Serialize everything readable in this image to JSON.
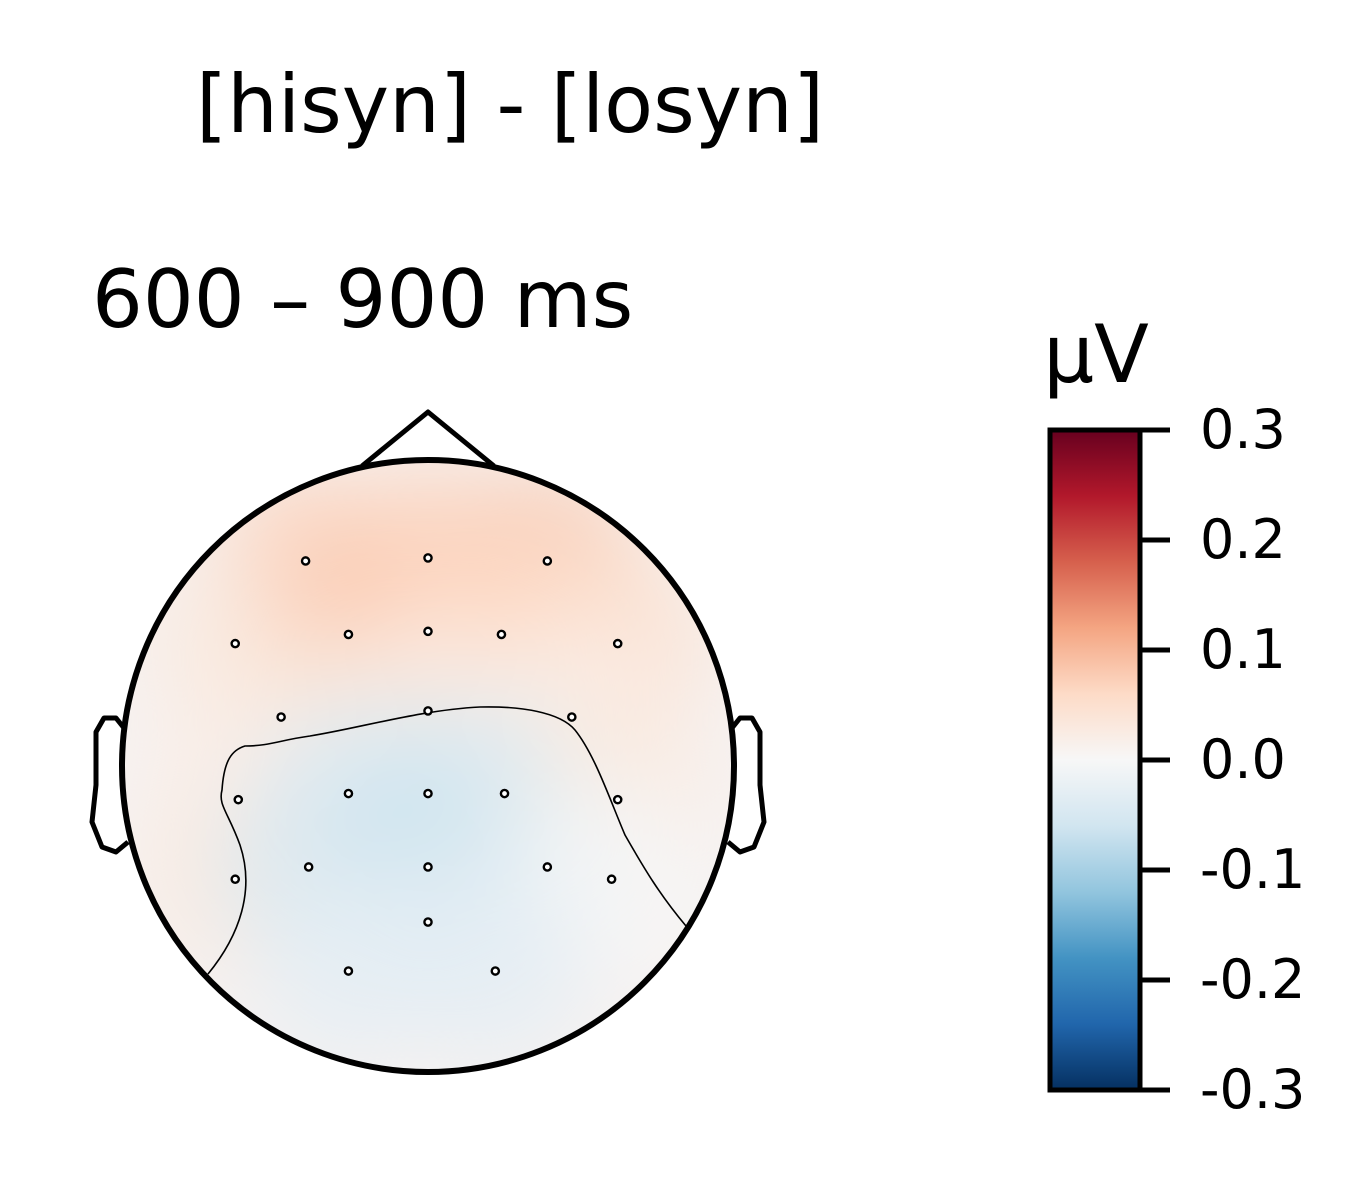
{
  "chart_data": {
    "type": "heatmap",
    "title": "[hisyn] - [losyn]",
    "subtitle": "600 – 900 ms",
    "colorbar": {
      "label": "µV",
      "vmin": -0.3,
      "vmax": 0.3,
      "ticks": [
        0.3,
        0.2,
        0.1,
        0.0,
        -0.1,
        -0.2,
        -0.3
      ],
      "tick_labels": [
        "0.3",
        "0.2",
        "0.1",
        "0.0",
        "-0.1",
        "-0.2",
        "-0.3"
      ],
      "colormap": "RdBu_r",
      "colors": [
        "#053061",
        "#2166ac",
        "#4393c3",
        "#92c5de",
        "#d1e5f0",
        "#f7f7f7",
        "#fddbc7",
        "#f4a582",
        "#d6604d",
        "#b2182b",
        "#67001f"
      ]
    },
    "sensors": [
      {
        "x": -0.4,
        "y": 0.67,
        "v": 0.07
      },
      {
        "x": 0.0,
        "y": 0.68,
        "v": 0.07
      },
      {
        "x": 0.39,
        "y": 0.67,
        "v": 0.08
      },
      {
        "x": -0.63,
        "y": 0.4,
        "v": 0.03
      },
      {
        "x": -0.26,
        "y": 0.43,
        "v": 0.08
      },
      {
        "x": 0.0,
        "y": 0.44,
        "v": 0.07
      },
      {
        "x": 0.24,
        "y": 0.43,
        "v": 0.06
      },
      {
        "x": 0.62,
        "y": 0.4,
        "v": 0.05
      },
      {
        "x": -0.48,
        "y": 0.16,
        "v": 0.03
      },
      {
        "x": 0.0,
        "y": 0.18,
        "v": 0.02
      },
      {
        "x": 0.47,
        "y": 0.16,
        "v": 0.02
      },
      {
        "x": -0.62,
        "y": -0.11,
        "v": 0.02
      },
      {
        "x": -0.26,
        "y": -0.09,
        "v": -0.04
      },
      {
        "x": 0.0,
        "y": -0.09,
        "v": -0.05
      },
      {
        "x": 0.25,
        "y": -0.09,
        "v": -0.04
      },
      {
        "x": 0.62,
        "y": -0.11,
        "v": 0.03
      },
      {
        "x": -0.63,
        "y": -0.37,
        "v": 0.03
      },
      {
        "x": -0.39,
        "y": -0.33,
        "v": -0.05
      },
      {
        "x": 0.0,
        "y": -0.33,
        "v": -0.07
      },
      {
        "x": 0.39,
        "y": -0.33,
        "v": -0.04
      },
      {
        "x": 0.6,
        "y": -0.37,
        "v": 0.0
      },
      {
        "x": 0.0,
        "y": -0.51,
        "v": -0.04
      },
      {
        "x": -0.26,
        "y": -0.67,
        "v": -0.03
      },
      {
        "x": 0.22,
        "y": -0.67,
        "v": -0.03
      }
    ]
  }
}
